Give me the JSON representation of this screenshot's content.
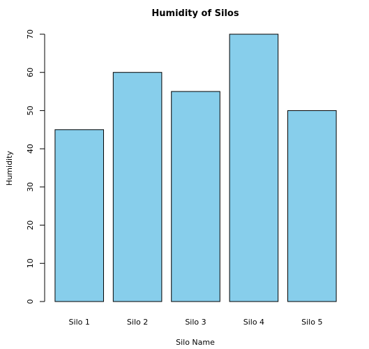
{
  "chart_data": {
    "type": "bar",
    "title": "Humidity of Silos",
    "xlabel": "Silo Name",
    "ylabel": "Humidity",
    "categories": [
      "Silo 1",
      "Silo 2",
      "Silo 3",
      "Silo 4",
      "Silo 5"
    ],
    "values": [
      45,
      60,
      55,
      70,
      50
    ],
    "ylim": [
      0,
      70
    ],
    "yticks": [
      0,
      10,
      20,
      30,
      40,
      50,
      60,
      70
    ],
    "grid": false,
    "bar_color": "#87CEEB",
    "bar_border_color": "#000000"
  }
}
